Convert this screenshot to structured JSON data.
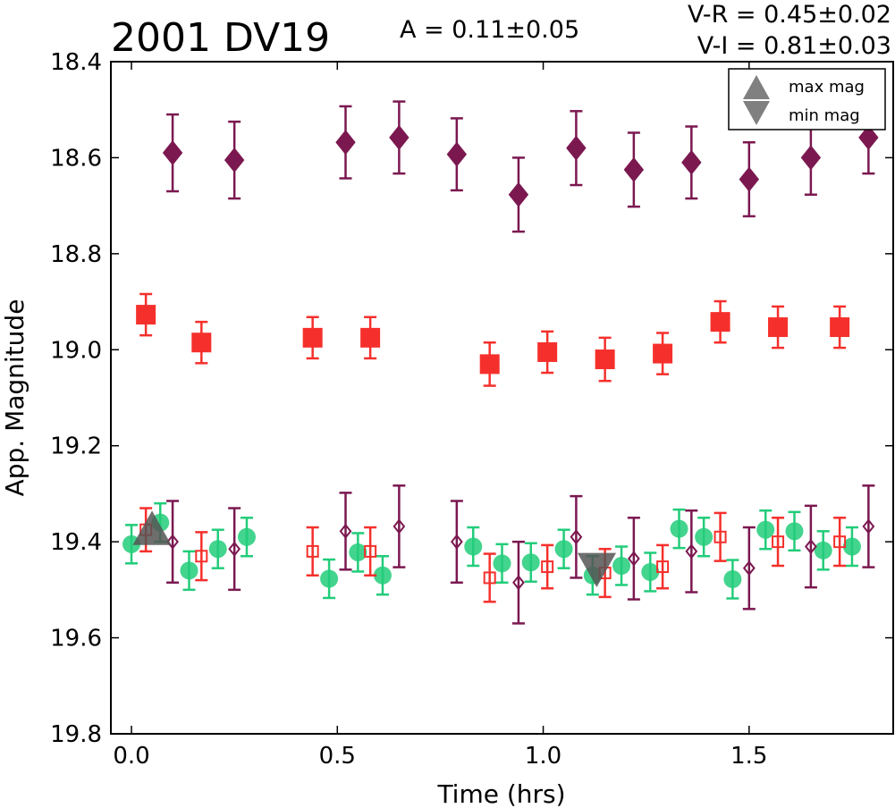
{
  "chart_data": {
    "type": "scatter",
    "title": "2001 DV19",
    "annotations": {
      "amplitude": "A  = 0.11±0.05",
      "color_vr": "V-R = 0.45±0.02",
      "color_vi": "V-I  = 0.81±0.03"
    },
    "xlabel": "Time (hrs)",
    "ylabel": "App. Magnitude",
    "xlim": [
      -0.05,
      1.85
    ],
    "ylim": [
      19.8,
      18.4
    ],
    "y_inverted": true,
    "grid": false,
    "x_ticks": [
      {
        "value": 0.0,
        "label": "0.0"
      },
      {
        "value": 0.5,
        "label": "0.5"
      },
      {
        "value": 1.0,
        "label": "1.0"
      },
      {
        "value": 1.5,
        "label": "1.5"
      }
    ],
    "y_ticks": [
      {
        "value": 18.4,
        "label": "18.4"
      },
      {
        "value": 18.6,
        "label": "18.6"
      },
      {
        "value": 18.8,
        "label": "18.8"
      },
      {
        "value": 19.0,
        "label": "19.0"
      },
      {
        "value": 19.2,
        "label": "19.2"
      },
      {
        "value": 19.4,
        "label": "19.4"
      },
      {
        "value": 19.6,
        "label": "19.6"
      },
      {
        "value": 19.8,
        "label": "19.8"
      }
    ],
    "legend": {
      "placement": "top-right",
      "entries": [
        {
          "label": "max mag",
          "marker": "triangle-up"
        },
        {
          "label": "min mag",
          "marker": "triangle-down"
        }
      ]
    },
    "colors": {
      "I": "#7b1850",
      "R": "#f5302c",
      "V": "#22cc7a",
      "extrema": "#555555"
    },
    "series": [
      {
        "marker": "diamond",
        "color_key": "I",
        "filled": true,
        "points": [
          {
            "x": 0.1,
            "y": 18.59,
            "err": 0.08
          },
          {
            "x": 0.25,
            "y": 18.605,
            "err": 0.08
          },
          {
            "x": 0.52,
            "y": 18.568,
            "err": 0.075
          },
          {
            "x": 0.65,
            "y": 18.558,
            "err": 0.075
          },
          {
            "x": 0.79,
            "y": 18.593,
            "err": 0.075
          },
          {
            "x": 0.94,
            "y": 18.677,
            "err": 0.077
          },
          {
            "x": 1.08,
            "y": 18.58,
            "err": 0.077
          },
          {
            "x": 1.22,
            "y": 18.625,
            "err": 0.077
          },
          {
            "x": 1.36,
            "y": 18.61,
            "err": 0.075
          },
          {
            "x": 1.5,
            "y": 18.645,
            "err": 0.077
          },
          {
            "x": 1.65,
            "y": 18.6,
            "err": 0.077
          },
          {
            "x": 1.79,
            "y": 18.558,
            "err": 0.075
          }
        ]
      },
      {
        "marker": "square",
        "color_key": "R",
        "filled": true,
        "points": [
          {
            "x": 0.035,
            "y": 18.927,
            "err": 0.043
          },
          {
            "x": 0.17,
            "y": 18.985,
            "err": 0.043
          },
          {
            "x": 0.44,
            "y": 18.975,
            "err": 0.043
          },
          {
            "x": 0.58,
            "y": 18.975,
            "err": 0.043
          },
          {
            "x": 0.87,
            "y": 19.03,
            "err": 0.045
          },
          {
            "x": 1.01,
            "y": 19.005,
            "err": 0.043
          },
          {
            "x": 1.15,
            "y": 19.02,
            "err": 0.045
          },
          {
            "x": 1.29,
            "y": 19.008,
            "err": 0.043
          },
          {
            "x": 1.43,
            "y": 18.942,
            "err": 0.043
          },
          {
            "x": 1.57,
            "y": 18.953,
            "err": 0.043
          },
          {
            "x": 1.72,
            "y": 18.953,
            "err": 0.043
          }
        ]
      },
      {
        "marker": "circle",
        "color_key": "V",
        "filled": true,
        "points": [
          {
            "x": 0.0,
            "y": 19.405,
            "err": 0.04
          },
          {
            "x": 0.07,
            "y": 19.36,
            "err": 0.04
          },
          {
            "x": 0.14,
            "y": 19.46,
            "err": 0.04
          },
          {
            "x": 0.21,
            "y": 19.415,
            "err": 0.04
          },
          {
            "x": 0.28,
            "y": 19.39,
            "err": 0.04
          },
          {
            "x": 0.48,
            "y": 19.477,
            "err": 0.04
          },
          {
            "x": 0.55,
            "y": 19.422,
            "err": 0.04
          },
          {
            "x": 0.61,
            "y": 19.47,
            "err": 0.04
          },
          {
            "x": 0.83,
            "y": 19.41,
            "err": 0.04
          },
          {
            "x": 0.9,
            "y": 19.445,
            "err": 0.04
          },
          {
            "x": 0.97,
            "y": 19.443,
            "err": 0.04
          },
          {
            "x": 1.05,
            "y": 19.415,
            "err": 0.04
          },
          {
            "x": 1.12,
            "y": 19.47,
            "err": 0.04
          },
          {
            "x": 1.19,
            "y": 19.45,
            "err": 0.04
          },
          {
            "x": 1.26,
            "y": 19.463,
            "err": 0.04
          },
          {
            "x": 1.33,
            "y": 19.373,
            "err": 0.04
          },
          {
            "x": 1.39,
            "y": 19.39,
            "err": 0.04
          },
          {
            "x": 1.46,
            "y": 19.478,
            "err": 0.04
          },
          {
            "x": 1.54,
            "y": 19.375,
            "err": 0.04
          },
          {
            "x": 1.61,
            "y": 19.378,
            "err": 0.04
          },
          {
            "x": 1.68,
            "y": 19.418,
            "err": 0.04
          },
          {
            "x": 1.75,
            "y": 19.41,
            "err": 0.04
          }
        ]
      },
      {
        "marker": "square",
        "color_key": "R",
        "filled": false,
        "points": [
          {
            "x": 0.035,
            "y": 19.375,
            "err": 0.045
          },
          {
            "x": 0.17,
            "y": 19.43,
            "err": 0.05
          },
          {
            "x": 0.44,
            "y": 19.42,
            "err": 0.05
          },
          {
            "x": 0.58,
            "y": 19.42,
            "err": 0.05
          },
          {
            "x": 0.87,
            "y": 19.475,
            "err": 0.05
          },
          {
            "x": 1.01,
            "y": 19.452,
            "err": 0.045
          },
          {
            "x": 1.15,
            "y": 19.465,
            "err": 0.05
          },
          {
            "x": 1.29,
            "y": 19.452,
            "err": 0.045
          },
          {
            "x": 1.43,
            "y": 19.39,
            "err": 0.05
          },
          {
            "x": 1.57,
            "y": 19.4,
            "err": 0.05
          },
          {
            "x": 1.72,
            "y": 19.4,
            "err": 0.05
          }
        ]
      },
      {
        "marker": "diamond",
        "color_key": "I",
        "filled": false,
        "points": [
          {
            "x": 0.1,
            "y": 19.4,
            "err": 0.085
          },
          {
            "x": 0.25,
            "y": 19.415,
            "err": 0.085
          },
          {
            "x": 0.52,
            "y": 19.378,
            "err": 0.08
          },
          {
            "x": 0.65,
            "y": 19.368,
            "err": 0.085
          },
          {
            "x": 0.79,
            "y": 19.4,
            "err": 0.085
          },
          {
            "x": 0.94,
            "y": 19.485,
            "err": 0.085
          },
          {
            "x": 1.08,
            "y": 19.39,
            "err": 0.085
          },
          {
            "x": 1.22,
            "y": 19.435,
            "err": 0.085
          },
          {
            "x": 1.36,
            "y": 19.42,
            "err": 0.085
          },
          {
            "x": 1.5,
            "y": 19.455,
            "err": 0.085
          },
          {
            "x": 1.65,
            "y": 19.41,
            "err": 0.085
          },
          {
            "x": 1.79,
            "y": 19.368,
            "err": 0.085
          }
        ]
      },
      {
        "marker": "triangle-up",
        "color_key": "extrema",
        "filled": true,
        "points": [
          {
            "x": 0.05,
            "y": 19.38
          }
        ]
      },
      {
        "marker": "triangle-down",
        "color_key": "extrema",
        "filled": true,
        "points": [
          {
            "x": 1.13,
            "y": 19.45
          }
        ]
      }
    ]
  }
}
